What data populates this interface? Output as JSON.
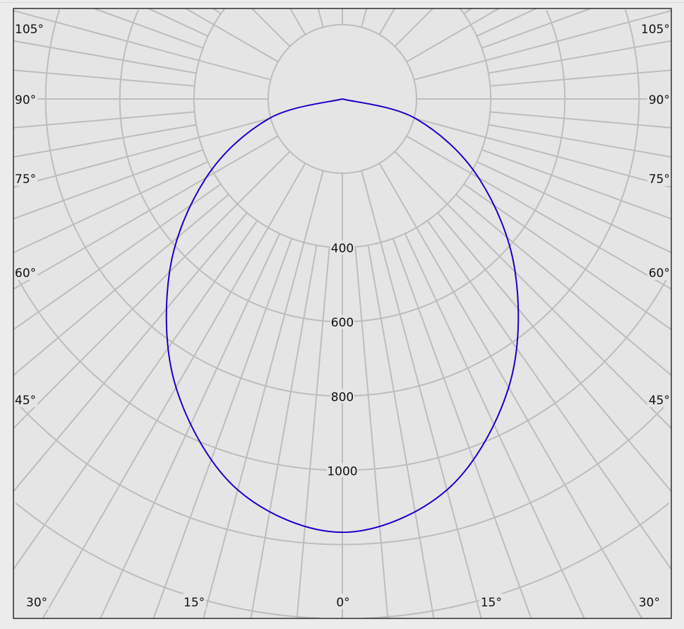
{
  "chart_data": {
    "type": "polar-line",
    "title": "",
    "radial_unit": "",
    "radial_range": [
      0,
      1400
    ],
    "radial_rings": [
      200,
      400,
      600,
      800,
      1000,
      1200,
      1400
    ],
    "radial_tick_labels": [
      "400",
      "600",
      "800",
      "1000"
    ],
    "angle_tick_labels_left": [
      "105°",
      "90°",
      "75°",
      "60°",
      "45°",
      "30°",
      "15°"
    ],
    "angle_tick_labels_right": [
      "105°",
      "90°",
      "75°",
      "60°",
      "45°",
      "30°",
      "15°"
    ],
    "angle_tick_label_center": "0°",
    "grid": true,
    "series": [
      {
        "color": "#1a00c8",
        "angles_deg": [
          -90,
          -75,
          -60,
          -45,
          -30,
          -15,
          0,
          15,
          30,
          45,
          60,
          75,
          90
        ],
        "values": [
          0,
          205,
          424,
          659,
          897,
          1090,
          1167,
          1090,
          897,
          659,
          424,
          205,
          0
        ]
      }
    ]
  },
  "colors": {
    "background": "#e5e5e5",
    "grid": "#bdbdbd",
    "frame": "#111111"
  }
}
